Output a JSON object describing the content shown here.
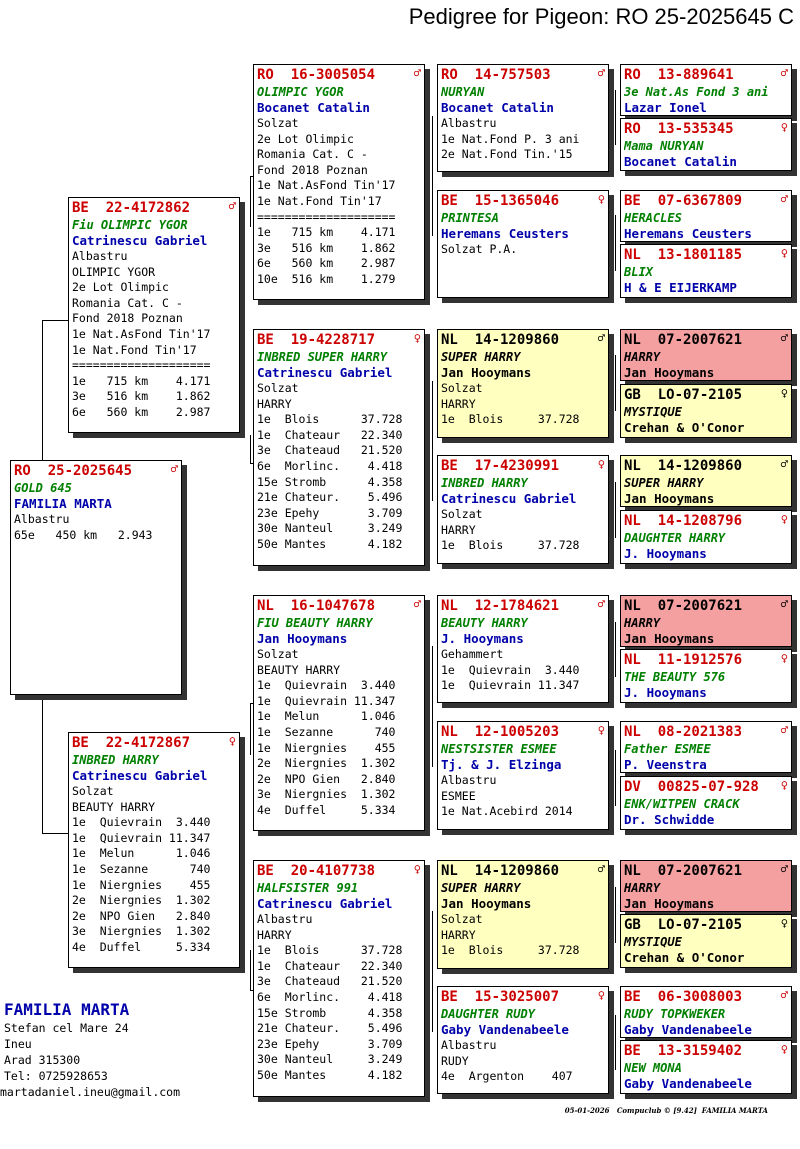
{
  "title": "Pedigree for Pigeon: RO  25-2025645 C",
  "cards": [
    {
      "id": "subject",
      "ring": "RO  25-2025645",
      "sex": "♂",
      "name": "GOLD 645",
      "owner": "FAMILIA MARTA",
      "lines": [
        "Albastru",
        "65e   450 km   2.943"
      ]
    },
    {
      "id": "sire",
      "ring": "BE  22-4172862",
      "sex": "♂",
      "name": "Fiu OLIMPIC YGOR",
      "owner": "Catrinescu Gabriel",
      "lines": [
        "Albastru",
        "OLIMPIC YGOR",
        "2e Lot Olimpic",
        "Romania Cat. C -",
        "Fond 2018 Poznan",
        "1e Nat.AsFond Tin'17",
        "1e Nat.Fond Tin'17",
        "====================",
        "1e   715 km    4.171",
        "3e   516 km    1.862",
        "6e   560 km    2.987"
      ]
    },
    {
      "id": "dam",
      "ring": "BE  22-4172867",
      "sex": "♀",
      "name": "INBRED HARRY",
      "owner": "Catrinescu Gabriel",
      "lines": [
        "Solzat",
        "BEAUTY HARRY",
        "1e  Quievrain  3.440",
        "1e  Quievrain 11.347",
        "1e  Melun      1.046",
        "1e  Sezanne      740",
        "1e  Niergnies    455",
        "2e  Niergnies  1.302",
        "2e  NPO Gien   2.840",
        "3e  Niergnies  1.302",
        "4e  Duffel     5.334"
      ]
    },
    {
      "id": "ss",
      "ring": "RO  16-3005054",
      "sex": "♂",
      "name": "OLIMPIC YGOR",
      "owner": "Bocanet Catalin",
      "lines": [
        "Solzat",
        "2e Lot Olimpic",
        "Romania Cat. C -",
        "Fond 2018 Poznan",
        "1e Nat.AsFond Tin'17",
        "1e Nat.Fond Tin'17",
        "====================",
        "1e   715 km    4.171",
        "3e   516 km    1.862",
        "6e   560 km    2.987",
        "10e  516 km    1.279"
      ]
    },
    {
      "id": "sd",
      "ring": "BE  19-4228717",
      "sex": "♀",
      "name": "INBRED SUPER HARRY",
      "owner": "Catrinescu Gabriel",
      "lines": [
        "Solzat",
        "HARRY",
        "1e  Blois      37.728",
        "1e  Chateaur   22.340",
        "3e  Chateaud   21.520",
        "6e  Morlinc.    4.418",
        "15e Stromb      4.358",
        "21e Chateur.    5.496",
        "23e Epehy       3.709",
        "30e Nanteul     3.249",
        "50e Mantes      4.182"
      ]
    },
    {
      "id": "ds",
      "ring": "NL  16-1047678",
      "sex": "♂",
      "name": "FIU BEAUTY HARRY",
      "owner": "Jan Hooymans",
      "lines": [
        "Solzat",
        "BEAUTY HARRY",
        "1e  Quievrain  3.440",
        "1e  Quievrain 11.347",
        "1e  Melun      1.046",
        "1e  Sezanne      740",
        "1e  Niergnies    455",
        "2e  Niergnies  1.302",
        "2e  NPO Gien   2.840",
        "3e  Niergnies  1.302",
        "4e  Duffel     5.334"
      ]
    },
    {
      "id": "dd",
      "ring": "BE  20-4107738",
      "sex": "♀",
      "name": "HALFSISTER 991",
      "owner": "Catrinescu Gabriel",
      "lines": [
        "Albastru",
        "HARRY",
        "1e  Blois      37.728",
        "1e  Chateaur   22.340",
        "3e  Chateaud   21.520",
        "6e  Morlinc.    4.418",
        "15e Stromb      4.358",
        "21e Chateur.    5.496",
        "23e Epehy       3.709",
        "30e Nanteul     3.249",
        "50e Mantes      4.182"
      ]
    },
    {
      "id": "sss",
      "ring": "RO  14-757503",
      "sex": "♂",
      "name": "NURYAN",
      "owner": "Bocanet Catalin",
      "lines": [
        "Albastru",
        "1e Nat.Fond P. 3 ani",
        "2e Nat.Fond Tin.'15"
      ]
    },
    {
      "id": "ssd",
      "ring": "BE  15-1365046",
      "sex": "♀",
      "name": "PRINTESA",
      "owner": "Heremans Ceusters",
      "lines": [
        "Solzat P.A."
      ]
    },
    {
      "id": "sds",
      "ring": "NL  14-1209860",
      "sex": "♂",
      "name": "SUPER HARRY",
      "owner": "Jan Hooymans",
      "lines": [
        "Solzat",
        "HARRY",
        "1e  Blois     37.728"
      ],
      "color": "yellow"
    },
    {
      "id": "sdd",
      "ring": "BE  17-4230991",
      "sex": "♀",
      "name": "INBRED HARRY",
      "owner": "Catrinescu Gabriel",
      "lines": [
        "Solzat",
        "HARRY",
        "1e  Blois     37.728"
      ]
    },
    {
      "id": "dss",
      "ring": "NL  12-1784621",
      "sex": "♂",
      "name": "BEAUTY HARRY",
      "owner": "J. Hooymans",
      "lines": [
        "Gehammert",
        "1e  Quievrain  3.440",
        "1e  Quievrain 11.347"
      ]
    },
    {
      "id": "dsd",
      "ring": "NL  12-1005203",
      "sex": "♀",
      "name": "NESTSISTER ESMEE",
      "owner": "Tj. & J. Elzinga",
      "lines": [
        "Albastru",
        "ESMEE",
        "1e Nat.Acebird 2014"
      ]
    },
    {
      "id": "dds",
      "ring": "NL  14-1209860",
      "sex": "♂",
      "name": "SUPER HARRY",
      "owner": "Jan Hooymans",
      "lines": [
        "Solzat",
        "HARRY",
        "1e  Blois     37.728"
      ],
      "color": "yellow"
    },
    {
      "id": "ddd",
      "ring": "BE  15-3025007",
      "sex": "♀",
      "name": "DAUGHTER RUDY",
      "owner": "Gaby Vandenabeele",
      "lines": [
        "Albastru",
        "RUDY",
        "4e  Argenton    407"
      ]
    },
    {
      "id": "g1",
      "ring": "RO  13-889641",
      "sex": "♂",
      "name": "3e Nat.As Fond 3 ani",
      "owner": "Lazar Ionel",
      "lines": []
    },
    {
      "id": "g2",
      "ring": "RO  13-535345",
      "sex": "♀",
      "name": "Mama NURYAN",
      "owner": "Bocanet Catalin",
      "lines": []
    },
    {
      "id": "g3",
      "ring": "BE  07-6367809",
      "sex": "♂",
      "name": "HERACLES",
      "owner": "Heremans Ceusters",
      "lines": []
    },
    {
      "id": "g4",
      "ring": "NL  13-1801185",
      "sex": "♀",
      "name": "BLIX",
      "owner": "H & E EIJERKAMP",
      "lines": []
    },
    {
      "id": "g5",
      "ring": "NL  07-2007621",
      "sex": "♂",
      "name": "HARRY",
      "owner": "Jan Hooymans",
      "lines": [],
      "color": "pink"
    },
    {
      "id": "g6",
      "ring": "GB  LO-07-2105",
      "sex": "♀",
      "name": "MYSTIQUE",
      "owner": "Crehan & O'Conor",
      "lines": [],
      "color": "yellow"
    },
    {
      "id": "g7",
      "ring": "NL  14-1209860",
      "sex": "♂",
      "name": "SUPER HARRY",
      "owner": "Jan Hooymans",
      "lines": [],
      "color": "yellow"
    },
    {
      "id": "g8",
      "ring": "NL  14-1208796",
      "sex": "♀",
      "name": "DAUGHTER HARRY",
      "owner": "J. Hooymans",
      "lines": []
    },
    {
      "id": "g9",
      "ring": "NL  07-2007621",
      "sex": "♂",
      "name": "HARRY",
      "owner": "Jan Hooymans",
      "lines": [],
      "color": "pink"
    },
    {
      "id": "g10",
      "ring": "NL  11-1912576",
      "sex": "♀",
      "name": "THE BEAUTY 576",
      "owner": "J. Hooymans",
      "lines": []
    },
    {
      "id": "g11",
      "ring": "NL  08-2021383",
      "sex": "♂",
      "name": "Father ESMEE",
      "owner": "P. Veenstra",
      "lines": []
    },
    {
      "id": "g12",
      "ring": "DV  00825-07-928",
      "sex": "♀",
      "name": "ENK/WITPEN CRACK",
      "owner": "Dr. Schwidde",
      "lines": []
    },
    {
      "id": "g13",
      "ring": "NL  07-2007621",
      "sex": "♂",
      "name": "HARRY",
      "owner": "Jan Hooymans",
      "lines": [],
      "color": "pink"
    },
    {
      "id": "g14",
      "ring": "GB  LO-07-2105",
      "sex": "♀",
      "name": "MYSTIQUE",
      "owner": "Crehan & O'Conor",
      "lines": [],
      "color": "yellow"
    },
    {
      "id": "g15",
      "ring": "BE  06-3008003",
      "sex": "♂",
      "name": "RUDY TOPKWEKER",
      "owner": "Gaby Vandenabeele",
      "lines": []
    },
    {
      "id": "g16",
      "ring": "BE  13-3159402",
      "sex": "♀",
      "name": "NEW MONA",
      "owner": "Gaby Vandenabeele",
      "lines": []
    }
  ],
  "breeder": {
    "name": "FAMILIA MARTA",
    "lines": [
      "Stefan cel Mare 24",
      "Ineu",
      "Arad 315300",
      "Tel: 0725928653",
      "martadaniel.ineu@gmail.com"
    ]
  },
  "footer": "05-01-2026   Compuclub © [9.42]  FAMILIA MARTA"
}
